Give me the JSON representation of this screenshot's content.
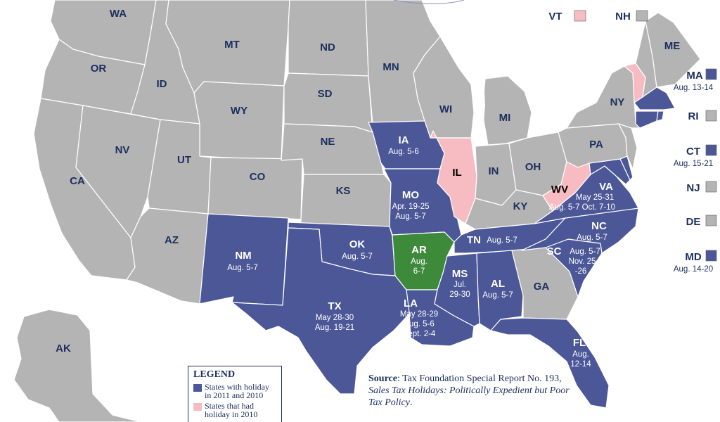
{
  "colors": {
    "none": "#b4b4b4",
    "holiday_2011_2010": "#4b5797",
    "holiday_2010_only": "#f6bcc1",
    "new": "#3c8a3a",
    "label_dark": "#1b2f5e"
  },
  "states": {
    "WA": {
      "label": "WA",
      "status": "none"
    },
    "OR": {
      "label": "OR",
      "status": "none"
    },
    "CA": {
      "label": "CA",
      "status": "none"
    },
    "NV": {
      "label": "NV",
      "status": "none"
    },
    "ID": {
      "label": "ID",
      "status": "none"
    },
    "MT": {
      "label": "MT",
      "status": "none"
    },
    "WY": {
      "label": "WY",
      "status": "none"
    },
    "UT": {
      "label": "UT",
      "status": "none"
    },
    "AZ": {
      "label": "AZ",
      "status": "none"
    },
    "CO": {
      "label": "CO",
      "status": "none"
    },
    "NM": {
      "label": "NM",
      "dates": "Aug. 5-7",
      "status": "holiday"
    },
    "ND": {
      "label": "ND",
      "status": "none"
    },
    "SD": {
      "label": "SD",
      "status": "none"
    },
    "NE": {
      "label": "NE",
      "status": "none"
    },
    "KS": {
      "label": "KS",
      "status": "none"
    },
    "OK": {
      "label": "OK",
      "dates": "Aug. 5-7",
      "status": "holiday"
    },
    "TX": {
      "label": "TX",
      "dates1": "May 28-30",
      "dates2": "Aug. 19-21",
      "status": "holiday"
    },
    "MN": {
      "label": "MN",
      "status": "none"
    },
    "IA": {
      "label": "IA",
      "dates": "Aug. 5-6",
      "status": "holiday"
    },
    "MO": {
      "label": "MO",
      "dates1": "Apr. 19-25",
      "dates2": "Aug. 5-7",
      "status": "holiday"
    },
    "AR": {
      "label": "AR",
      "dates1": "Aug.",
      "dates2": "6-7",
      "status": "new"
    },
    "LA": {
      "label": "LA",
      "dates1": "May 28-29",
      "dates2": "Aug. 5-6",
      "dates3": "Sept. 2-4",
      "status": "holiday"
    },
    "WI": {
      "label": "WI",
      "status": "none"
    },
    "IL": {
      "label": "IL",
      "status": "past"
    },
    "MI": {
      "label": "MI",
      "status": "none"
    },
    "IN": {
      "label": "IN",
      "status": "none"
    },
    "OH": {
      "label": "OH",
      "status": "none"
    },
    "KY": {
      "label": "KY",
      "status": "none"
    },
    "TN": {
      "label": "TN",
      "dates": "Aug. 5-7",
      "status": "holiday"
    },
    "MS": {
      "label": "MS",
      "dates1": "Jul.",
      "dates2": "29-30",
      "status": "holiday"
    },
    "AL": {
      "label": "AL",
      "dates": "Aug. 5-7",
      "status": "holiday"
    },
    "GA": {
      "label": "GA",
      "status": "none"
    },
    "FL": {
      "label": "FL",
      "dates1": "Aug.",
      "dates2": "12-14",
      "status": "holiday"
    },
    "SC": {
      "label": "SC",
      "dates1": "Aug. 5-7",
      "dates2": "Nov. 25",
      "dates3": "-26",
      "status": "holiday"
    },
    "NC": {
      "label": "NC",
      "dates": "Aug. 5-7",
      "status": "holiday"
    },
    "VA": {
      "label": "VA",
      "dates1": "May 25-31",
      "dates2": "Aug. 5-7 Oct. 7-10",
      "status": "holiday"
    },
    "WV": {
      "label": "WV",
      "status": "past"
    },
    "PA": {
      "label": "PA",
      "status": "none"
    },
    "NY": {
      "label": "NY",
      "status": "none"
    },
    "ME": {
      "label": "ME",
      "status": "none"
    },
    "AK": {
      "label": "AK",
      "status": "none"
    }
  },
  "side_states": {
    "VT": {
      "label": "VT",
      "status": "past"
    },
    "NH": {
      "label": "NH",
      "status": "none"
    },
    "MA": {
      "label": "MA",
      "dates": "Aug. 13-14",
      "status": "holiday"
    },
    "RI": {
      "label": "RI",
      "status": "none"
    },
    "CT": {
      "label": "CT",
      "dates": "Aug. 15-21",
      "status": "holiday"
    },
    "NJ": {
      "label": "NJ",
      "status": "none"
    },
    "DE": {
      "label": "DE",
      "status": "none"
    },
    "MD": {
      "label": "MD",
      "dates": "Aug. 14-20",
      "status": "holiday"
    }
  },
  "legend": {
    "title": "LEGEND",
    "item1_line1": "States with holiday",
    "item1_line2": "in 2011 and 2010",
    "item2_line1": "States that had",
    "item2_line2": "holiday in 2010"
  },
  "source": {
    "label": "Source",
    "text1": ": Tax Foundation Special Report No. 193, ",
    "title": "Sales Tax Holidays: Politically Expedient but Poor Tax Policy",
    "end": "."
  }
}
